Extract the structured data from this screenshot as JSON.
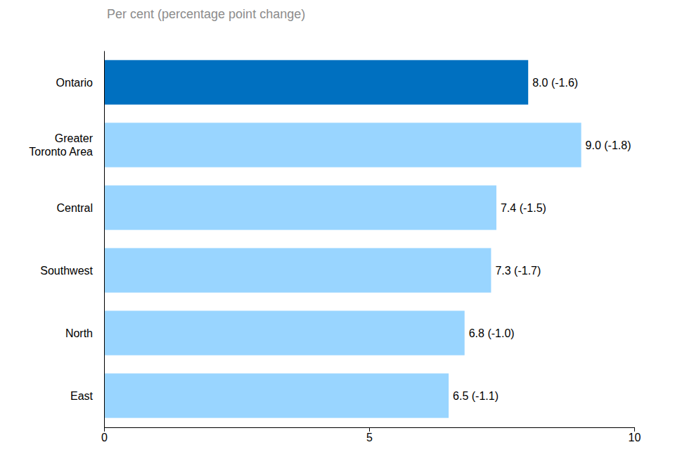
{
  "chart_data": {
    "type": "bar",
    "orientation": "horizontal",
    "title": "Per cent (percentage point change)",
    "categories": [
      "Ontario",
      "Greater Toronto Area",
      "Central",
      "Southwest",
      "North",
      "East"
    ],
    "values": [
      8.0,
      9.0,
      7.4,
      7.3,
      6.8,
      6.5
    ],
    "value_labels": [
      "8.0 (-1.6)",
      "9.0 (-1.8)",
      "7.4 (-1.5)",
      "7.3 (-1.7)",
      "6.8 (-1.0)",
      "6.5 (-1.1)"
    ],
    "colors": [
      "#0070c0",
      "#99d5ff",
      "#99d5ff",
      "#99d5ff",
      "#99d5ff",
      "#99d5ff"
    ],
    "xlim": [
      0,
      10
    ],
    "xticks": [
      0,
      5,
      10
    ],
    "grid": false,
    "data_labels": true
  }
}
